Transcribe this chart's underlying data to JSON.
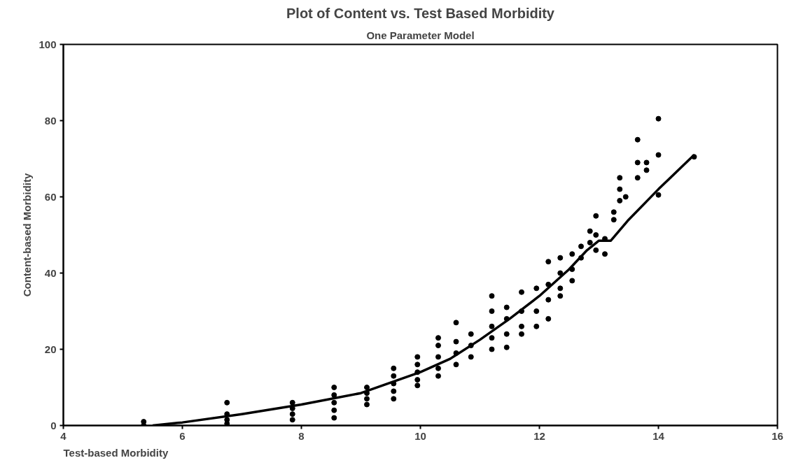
{
  "chart_data": {
    "type": "scatter",
    "title": "Plot of Content vs. Test Based Morbidity",
    "subtitle": "One Parameter Model",
    "xlabel": "Test-based Morbidity",
    "ylabel": "Content-based Morbidity",
    "xlim": [
      4,
      16
    ],
    "ylim": [
      0,
      100
    ],
    "xticks": [
      4,
      6,
      8,
      10,
      12,
      14,
      16
    ],
    "yticks": [
      0,
      20,
      40,
      60,
      80,
      100
    ],
    "grid": false,
    "marker": "circle",
    "series": [
      {
        "color": "#000000",
        "x": [
          5.35,
          5.35,
          6.75,
          6.75,
          6.75,
          6.75,
          7.85,
          7.85,
          7.85,
          7.85,
          8.55,
          8.55,
          8.55,
          8.55,
          8.55,
          9.1,
          9.1,
          9.1,
          9.1,
          9.55,
          9.55,
          9.55,
          9.55,
          9.55,
          9.95,
          9.95,
          9.95,
          9.95,
          9.95,
          10.3,
          10.3,
          10.3,
          10.3,
          10.3,
          10.6,
          10.6,
          10.6,
          10.6,
          10.85,
          10.85,
          10.85,
          11.2,
          11.2,
          11.2,
          11.2,
          11.2,
          11.45,
          11.45,
          11.45,
          11.45,
          11.7,
          11.7,
          11.7,
          11.7,
          11.95,
          11.95,
          11.95,
          12.15,
          12.15,
          12.15,
          12.15,
          12.35,
          12.35,
          12.35,
          12.35,
          12.55,
          12.55,
          12.55,
          12.7,
          12.7,
          12.85,
          12.85,
          12.95,
          12.95,
          12.95,
          13.1,
          13.1,
          13.25,
          13.25,
          13.35,
          13.35,
          13.35,
          13.45,
          13.65,
          13.65,
          13.65,
          13.8,
          13.8,
          14.0,
          14.0,
          14.0,
          14.6
        ],
        "values": [
          1,
          0,
          6,
          3,
          1.5,
          0.5,
          6,
          4.5,
          3,
          1.5,
          10,
          8,
          6,
          4,
          2,
          10,
          8.5,
          7,
          5.5,
          15,
          13,
          11,
          9,
          7,
          18,
          16,
          14,
          12,
          10.5,
          23,
          21,
          18,
          15,
          13,
          27,
          22,
          19,
          16,
          24,
          21,
          18,
          34,
          30,
          26,
          23,
          20,
          31,
          28,
          24,
          20.5,
          35,
          30,
          26,
          24,
          36,
          30,
          26,
          43,
          37,
          33,
          28,
          44,
          40,
          36,
          34,
          45,
          41,
          38,
          47,
          44,
          51,
          48,
          55,
          50,
          46,
          49,
          45,
          56,
          54,
          65,
          62,
          59,
          60,
          75,
          69,
          65,
          69,
          67,
          80.5,
          71,
          60.5,
          70.5
        ]
      },
      {
        "type": "line",
        "color": "#000000",
        "line_style": "solid",
        "marker": "none",
        "x": [
          5.5,
          6,
          7,
          8,
          9,
          10,
          10.5,
          11,
          11.5,
          12,
          12.5,
          12.8,
          13,
          13.2,
          13.5,
          14,
          14.6
        ],
        "values": [
          0,
          0.8,
          3,
          5.5,
          8.5,
          14,
          17.5,
          22.5,
          28,
          34,
          41,
          46,
          48.5,
          48.5,
          54,
          62,
          71
        ]
      }
    ]
  }
}
